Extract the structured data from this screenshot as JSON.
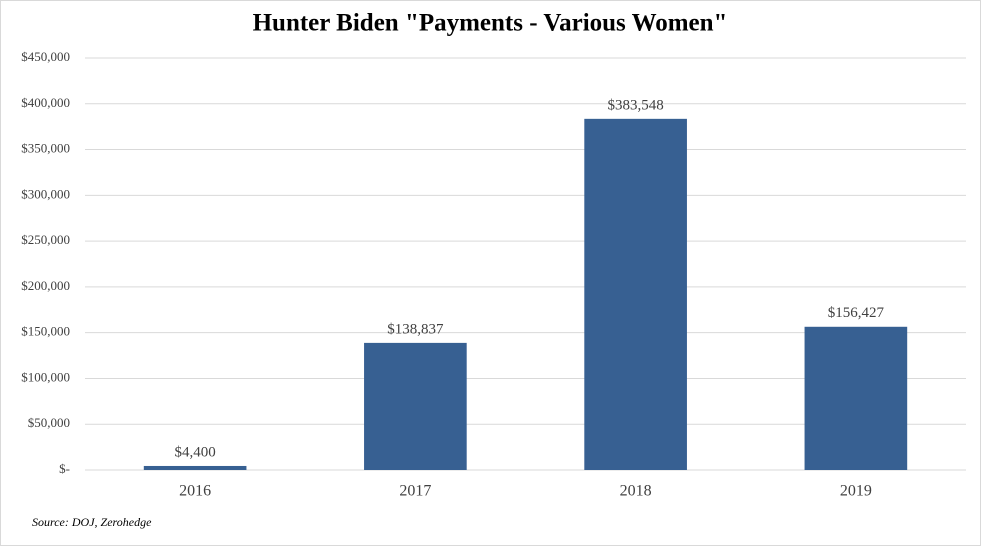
{
  "chart_data": {
    "type": "bar",
    "title": "Hunter Biden \"Payments - Various Women\"",
    "categories": [
      "2016",
      "2017",
      "2018",
      "2019"
    ],
    "values": [
      4400,
      138837,
      383548,
      156427
    ],
    "value_labels": [
      "$4,400",
      "$138,837",
      "$383,548",
      "$156,427"
    ],
    "color": "#376092",
    "ylim": [
      0,
      450000
    ],
    "yticks": [
      {
        "value": 0,
        "label": "$-"
      },
      {
        "value": 50000,
        "label": "$50,000"
      },
      {
        "value": 100000,
        "label": "$100,000"
      },
      {
        "value": 150000,
        "label": "$150,000"
      },
      {
        "value": 200000,
        "label": "$200,000"
      },
      {
        "value": 250000,
        "label": "$250,000"
      },
      {
        "value": 300000,
        "label": "$300,000"
      },
      {
        "value": 350000,
        "label": "$350,000"
      },
      {
        "value": 400000,
        "label": "$400,000"
      },
      {
        "value": 450000,
        "label": "$450,000"
      }
    ],
    "grid": true,
    "source": "Source: DOJ, Zerohedge"
  }
}
